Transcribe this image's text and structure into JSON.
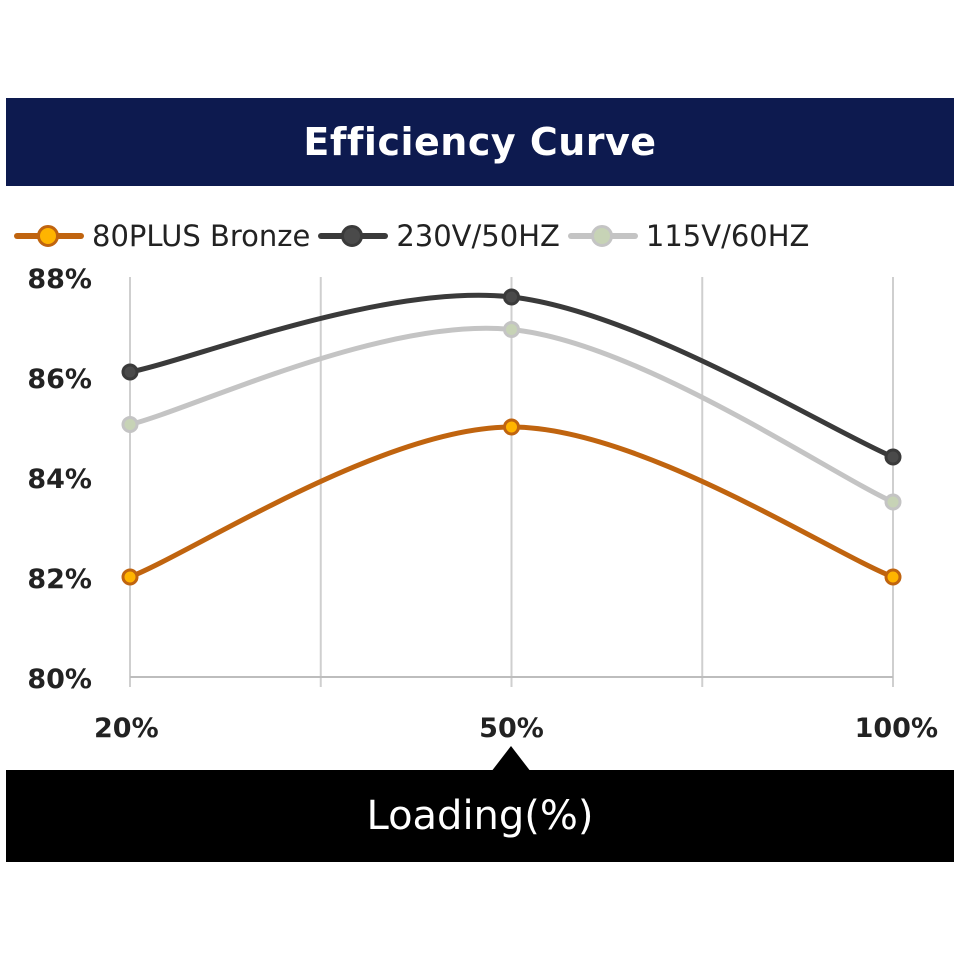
{
  "chart_data": {
    "type": "line",
    "title": "Efficiency Curve",
    "xlabel": "Loading(%)",
    "ylabel": "",
    "categories": [
      "20%",
      "50%",
      "100%"
    ],
    "y_ticks": [
      "80%",
      "82%",
      "84%",
      "86%",
      "88%"
    ],
    "ylim": [
      80,
      88
    ],
    "grid": "vertical",
    "legend_position": "top",
    "series": [
      {
        "name": "80PLUS Bronze",
        "values": [
          82.0,
          85.0,
          82.0
        ],
        "color": "#c0640f",
        "marker_color": "#ffb400"
      },
      {
        "name": "230V/50HZ",
        "values": [
          86.1,
          87.6,
          84.4
        ],
        "color": "#3a3a3a",
        "marker_color": "#4a4a4a"
      },
      {
        "name": "115V/60HZ",
        "values": [
          85.05,
          86.95,
          83.5
        ],
        "color": "#c4c4c4",
        "marker_color": "#c7d3b6"
      }
    ]
  }
}
